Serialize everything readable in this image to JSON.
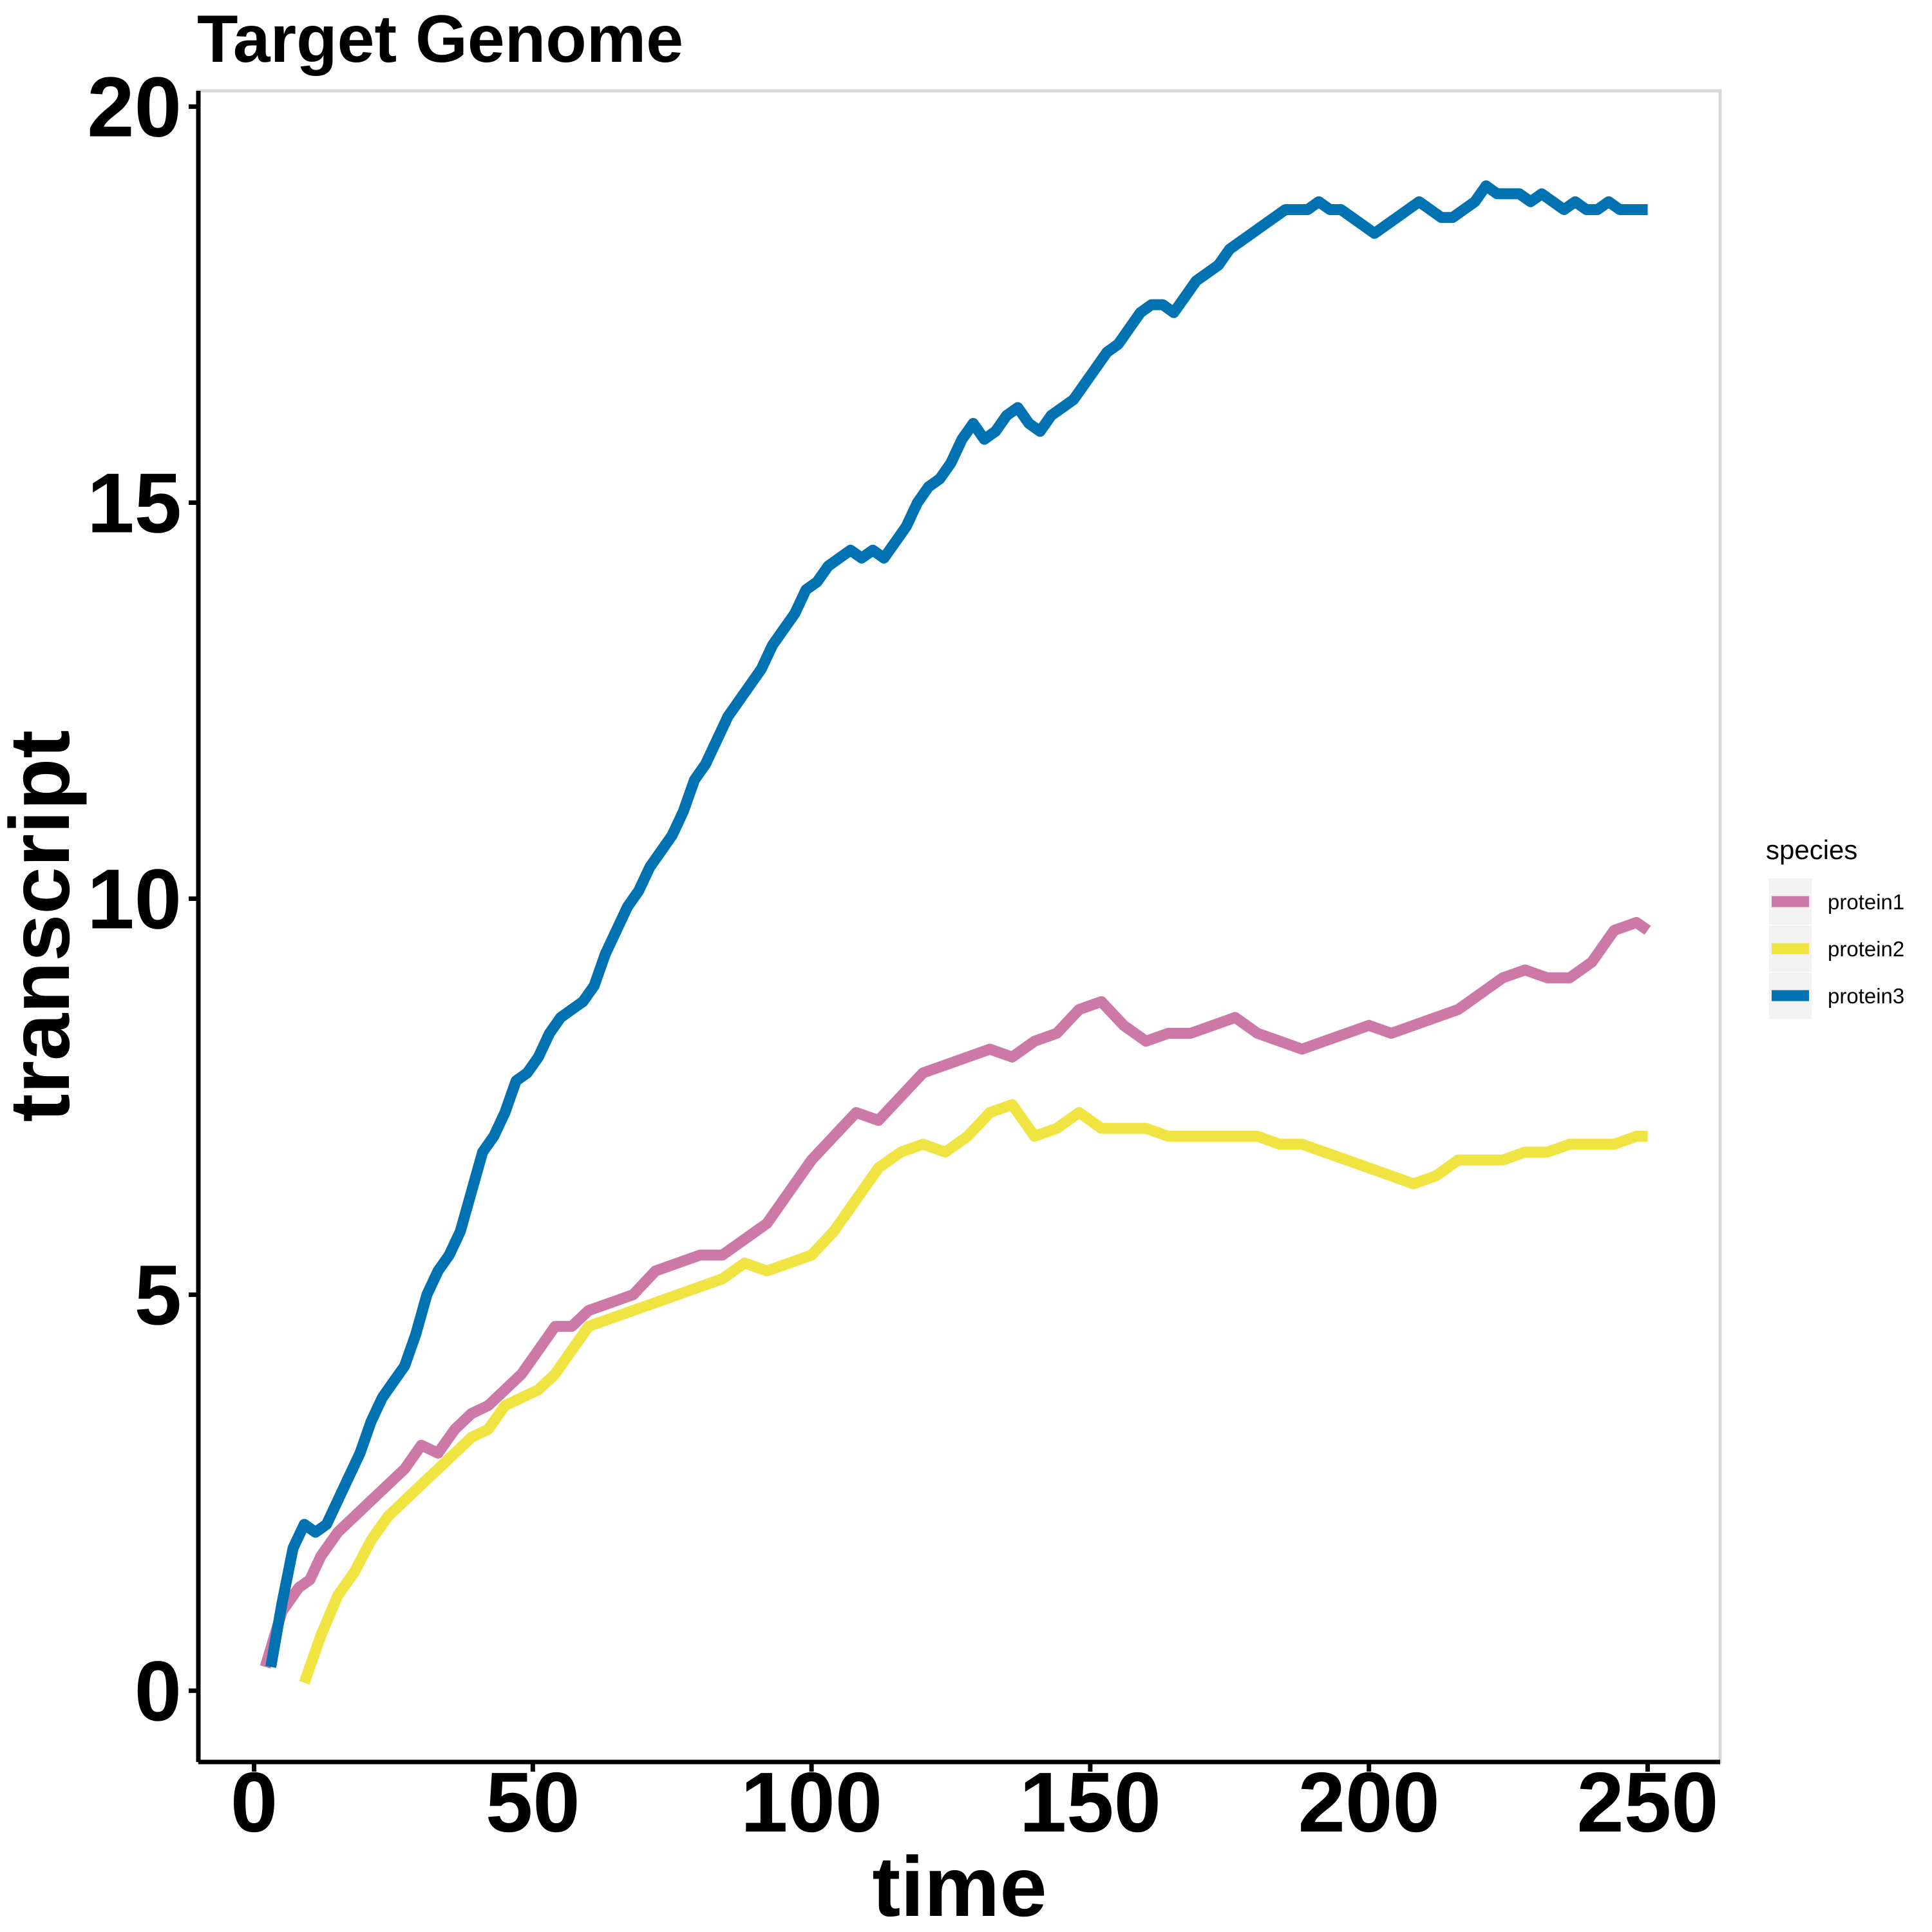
{
  "chart_data": {
    "type": "line",
    "title": "Target Genome",
    "xlabel": "time",
    "ylabel": "transcript",
    "xlim": [
      -10,
      263
    ],
    "ylim": [
      -0.9,
      20.2
    ],
    "xticks": [
      "0",
      "50",
      "100",
      "150",
      "200",
      "250"
    ],
    "yticks": [
      "0",
      "5",
      "10",
      "15",
      "20"
    ],
    "legend_title": "species",
    "legend_position": "right",
    "series": [
      {
        "name": "protein1",
        "color": "#CC79A7",
        "x": [
          2,
          5,
          8,
          10,
          12,
          15,
          18,
          21,
          24,
          27,
          30,
          33,
          36,
          39,
          42,
          45,
          48,
          51,
          54,
          57,
          60,
          64,
          68,
          72,
          76,
          80,
          84,
          88,
          92,
          96,
          100,
          104,
          108,
          112,
          116,
          120,
          124,
          128,
          132,
          136,
          140,
          144,
          148,
          152,
          156,
          160,
          164,
          168,
          172,
          176,
          180,
          184,
          188,
          192,
          196,
          200,
          204,
          208,
          212,
          216,
          220,
          224,
          228,
          232,
          236,
          240,
          244,
          248,
          250
        ],
        "y": [
          0.3,
          1.0,
          1.3,
          1.4,
          1.7,
          2.0,
          2.2,
          2.4,
          2.6,
          2.8,
          3.1,
          3.0,
          3.3,
          3.5,
          3.6,
          3.8,
          4.0,
          4.3,
          4.6,
          4.6,
          4.8,
          4.9,
          5.0,
          5.3,
          5.4,
          5.5,
          5.5,
          5.7,
          5.9,
          6.3,
          6.7,
          7.0,
          7.3,
          7.2,
          7.5,
          7.8,
          7.9,
          8.0,
          8.1,
          8.0,
          8.2,
          8.3,
          8.6,
          8.7,
          8.4,
          8.2,
          8.3,
          8.3,
          8.4,
          8.5,
          8.3,
          8.2,
          8.1,
          8.2,
          8.3,
          8.4,
          8.3,
          8.4,
          8.5,
          8.6,
          8.8,
          9.0,
          9.1,
          9.0,
          9.0,
          9.2,
          9.6,
          9.7,
          9.6
        ]
      },
      {
        "name": "protein2",
        "color": "#F0E442",
        "x": [
          9,
          12,
          15,
          18,
          21,
          24,
          27,
          30,
          33,
          36,
          39,
          42,
          45,
          48,
          51,
          54,
          57,
          60,
          64,
          68,
          72,
          76,
          80,
          84,
          88,
          92,
          96,
          100,
          104,
          108,
          112,
          116,
          120,
          124,
          128,
          132,
          136,
          140,
          144,
          148,
          152,
          156,
          160,
          164,
          168,
          172,
          176,
          180,
          184,
          188,
          192,
          196,
          200,
          204,
          208,
          212,
          216,
          220,
          224,
          228,
          232,
          236,
          240,
          244,
          248,
          250
        ],
        "y": [
          0.1,
          0.7,
          1.2,
          1.5,
          1.9,
          2.2,
          2.4,
          2.6,
          2.8,
          3.0,
          3.2,
          3.3,
          3.6,
          3.7,
          3.8,
          4.0,
          4.3,
          4.6,
          4.7,
          4.8,
          4.9,
          5.0,
          5.1,
          5.2,
          5.4,
          5.3,
          5.4,
          5.5,
          5.8,
          6.2,
          6.6,
          6.8,
          6.9,
          6.8,
          7.0,
          7.3,
          7.4,
          7.0,
          7.1,
          7.3,
          7.1,
          7.1,
          7.1,
          7.0,
          7.0,
          7.0,
          7.0,
          7.0,
          6.9,
          6.9,
          6.8,
          6.7,
          6.6,
          6.5,
          6.4,
          6.5,
          6.7,
          6.7,
          6.7,
          6.8,
          6.8,
          6.9,
          6.9,
          6.9,
          7.0,
          7.0
        ]
      },
      {
        "name": "protein3",
        "color": "#0072B2",
        "x": [
          3,
          5,
          7,
          9,
          11,
          13,
          15,
          17,
          19,
          21,
          23,
          25,
          27,
          29,
          31,
          33,
          35,
          37,
          39,
          41,
          43,
          45,
          47,
          49,
          51,
          53,
          55,
          57,
          59,
          61,
          63,
          65,
          67,
          69,
          71,
          73,
          75,
          77,
          79,
          81,
          83,
          85,
          87,
          89,
          91,
          93,
          95,
          97,
          99,
          101,
          103,
          105,
          107,
          109,
          111,
          113,
          115,
          117,
          119,
          121,
          123,
          125,
          127,
          129,
          131,
          133,
          135,
          137,
          139,
          141,
          143,
          145,
          147,
          149,
          151,
          153,
          155,
          157,
          159,
          161,
          163,
          165,
          167,
          169,
          171,
          173,
          175,
          177,
          179,
          181,
          183,
          185,
          187,
          189,
          191,
          193,
          195,
          197,
          199,
          201,
          203,
          205,
          207,
          209,
          211,
          213,
          215,
          217,
          219,
          221,
          223,
          225,
          227,
          229,
          231,
          233,
          235,
          237,
          239,
          241,
          243,
          245,
          247,
          249,
          250
        ],
        "y": [
          0.3,
          1.1,
          1.8,
          2.1,
          2.0,
          2.1,
          2.4,
          2.7,
          3.0,
          3.4,
          3.7,
          3.9,
          4.1,
          4.5,
          5.0,
          5.3,
          5.5,
          5.8,
          6.3,
          6.8,
          7.0,
          7.3,
          7.7,
          7.8,
          8.0,
          8.3,
          8.5,
          8.6,
          8.7,
          8.9,
          9.3,
          9.6,
          9.9,
          10.1,
          10.4,
          10.6,
          10.8,
          11.1,
          11.5,
          11.7,
          12.0,
          12.3,
          12.5,
          12.7,
          12.9,
          13.2,
          13.4,
          13.6,
          13.9,
          14.0,
          14.2,
          14.3,
          14.4,
          14.3,
          14.4,
          14.3,
          14.5,
          14.7,
          15.0,
          15.2,
          15.3,
          15.5,
          15.8,
          16.0,
          15.8,
          15.9,
          16.1,
          16.2,
          16.0,
          15.9,
          16.1,
          16.2,
          16.3,
          16.5,
          16.7,
          16.9,
          17.0,
          17.2,
          17.4,
          17.5,
          17.5,
          17.4,
          17.6,
          17.8,
          17.9,
          18.0,
          18.2,
          18.3,
          18.4,
          18.5,
          18.6,
          18.7,
          18.7,
          18.7,
          18.8,
          18.7,
          18.7,
          18.6,
          18.5,
          18.4,
          18.5,
          18.6,
          18.7,
          18.8,
          18.7,
          18.6,
          18.6,
          18.7,
          18.8,
          19.0,
          18.9,
          18.9,
          18.9,
          18.8,
          18.9,
          18.8,
          18.7,
          18.8,
          18.7,
          18.7,
          18.8,
          18.7,
          18.7,
          18.7,
          18.7
        ]
      }
    ]
  }
}
